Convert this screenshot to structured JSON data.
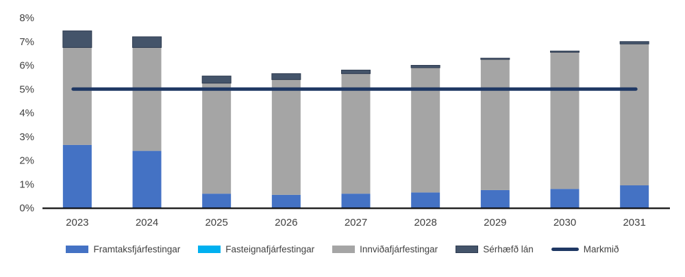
{
  "chart_data": {
    "type": "bar",
    "subtype": "stacked-bars-with-target-line",
    "title": "",
    "xlabel": "",
    "ylabel": "",
    "categories": [
      "2023",
      "2024",
      "2025",
      "2026",
      "2027",
      "2028",
      "2029",
      "2030",
      "2031"
    ],
    "series": [
      {
        "name": "Framtaksfjárfestingar",
        "type": "bar",
        "color": "#4472C4",
        "values": [
          2.65,
          2.4,
          0.6,
          0.55,
          0.6,
          0.65,
          0.75,
          0.8,
          0.95
        ]
      },
      {
        "name": "Fasteignafjárfestingar",
        "type": "bar",
        "color": "#00B0F0",
        "values": [
          0,
          0,
          0,
          0,
          0,
          0,
          0,
          0,
          0
        ]
      },
      {
        "name": "Innviðafjárfestingar",
        "type": "bar",
        "color": "#A5A5A5",
        "values": [
          4.1,
          4.35,
          4.65,
          4.85,
          5.05,
          5.25,
          5.5,
          5.75,
          5.95
        ]
      },
      {
        "name": "Sérhæfð lán",
        "type": "bar",
        "color": "#44546A",
        "values": [
          0.7,
          0.45,
          0.3,
          0.25,
          0.15,
          0.1,
          0.05,
          0.05,
          0.1
        ]
      },
      {
        "name": "Markmið",
        "type": "line",
        "color": "#1F3864",
        "values": [
          5,
          5,
          5,
          5,
          5,
          5,
          5,
          5,
          5
        ]
      }
    ],
    "stacked_totals": [
      7.45,
      7.2,
      5.55,
      5.65,
      5.8,
      6.0,
      6.3,
      6.6,
      7.0
    ],
    "ylim": [
      0,
      8
    ],
    "ytick_step": 1,
    "ytick_suffix": "%",
    "ytick_labels": [
      "0%",
      "1%",
      "2%",
      "3%",
      "4%",
      "5%",
      "6%",
      "7%",
      "8%"
    ],
    "grid": false,
    "legend_position": "bottom",
    "axis_color": "#0d0d0d",
    "tick_label_color": "#404040"
  }
}
